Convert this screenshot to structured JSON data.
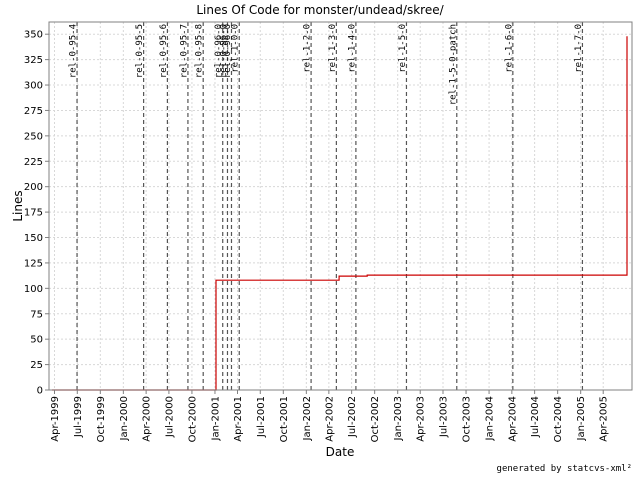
{
  "chart_data": {
    "type": "line",
    "title": "Lines Of Code for monster/undead/skree/",
    "xlabel": "Date",
    "ylabel": "Lines",
    "ylim": [
      0,
      362
    ],
    "xlim": [
      "1999-03-10",
      "2005-07-25"
    ],
    "yticks": [
      0,
      25,
      50,
      75,
      100,
      125,
      150,
      175,
      200,
      225,
      250,
      275,
      300,
      325,
      350
    ],
    "xticks": [
      {
        "label": "Apr-1999",
        "date": "1999-04-01"
      },
      {
        "label": "Jul-1999",
        "date": "1999-07-01"
      },
      {
        "label": "Oct-1999",
        "date": "1999-10-01"
      },
      {
        "label": "Jan-2000",
        "date": "2000-01-01"
      },
      {
        "label": "Apr-2000",
        "date": "2000-04-01"
      },
      {
        "label": "Jul-2000",
        "date": "2000-07-01"
      },
      {
        "label": "Oct-2000",
        "date": "2000-10-01"
      },
      {
        "label": "Jan-2001",
        "date": "2001-01-01"
      },
      {
        "label": "Apr-2001",
        "date": "2001-04-01"
      },
      {
        "label": "Jul-2001",
        "date": "2001-07-01"
      },
      {
        "label": "Oct-2001",
        "date": "2001-10-01"
      },
      {
        "label": "Jan-2002",
        "date": "2002-01-01"
      },
      {
        "label": "Apr-2002",
        "date": "2002-04-01"
      },
      {
        "label": "Jul-2002",
        "date": "2002-07-01"
      },
      {
        "label": "Oct-2002",
        "date": "2002-10-01"
      },
      {
        "label": "Jan-2003",
        "date": "2003-01-01"
      },
      {
        "label": "Apr-2003",
        "date": "2003-04-01"
      },
      {
        "label": "Jul-2003",
        "date": "2003-07-01"
      },
      {
        "label": "Oct-2003",
        "date": "2003-10-01"
      },
      {
        "label": "Jan-2004",
        "date": "2004-01-01"
      },
      {
        "label": "Apr-2004",
        "date": "2004-04-01"
      },
      {
        "label": "Jul-2004",
        "date": "2004-07-01"
      },
      {
        "label": "Oct-2004",
        "date": "2004-10-01"
      },
      {
        "label": "Jan-2005",
        "date": "2005-01-01"
      },
      {
        "label": "Apr-2005",
        "date": "2005-04-01"
      }
    ],
    "grid": true,
    "series": [
      {
        "color": "#cc0000",
        "step": true,
        "points": [
          {
            "x": "1999-03-22",
            "y": 0
          },
          {
            "x": "2000-12-28",
            "y": 0
          },
          {
            "x": "2001-01-05",
            "y": 108
          },
          {
            "x": "2002-05-10",
            "y": 108
          },
          {
            "x": "2002-05-12",
            "y": 112
          },
          {
            "x": "2002-08-25",
            "y": 112
          },
          {
            "x": "2002-09-01",
            "y": 113
          },
          {
            "x": "2005-07-01",
            "y": 113
          },
          {
            "x": "2005-07-05",
            "y": 348
          }
        ]
      }
    ],
    "markers": [
      {
        "label": "rel-0-95-4",
        "date": "1999-06-30"
      },
      {
        "label": "rel-0-95-5",
        "date": "2000-03-22"
      },
      {
        "label": "rel-0-95-6",
        "date": "2000-06-25"
      },
      {
        "label": "rel-0-95-7",
        "date": "2000-09-15"
      },
      {
        "label": "rel-0-95-8",
        "date": "2000-11-15"
      },
      {
        "label": "rel-0-96-0",
        "date": "2001-02-01"
      },
      {
        "label": "rel-0-96-0",
        "date": "2001-02-20"
      },
      {
        "label": "rel-0-96-0",
        "date": "2001-03-08"
      },
      {
        "label": "rel-1-0-0",
        "date": "2001-04-08"
      },
      {
        "label": "rel-1-2-0",
        "date": "2002-01-20"
      },
      {
        "label": "rel-1-3-0",
        "date": "2002-05-01"
      },
      {
        "label": "rel-1-4-0",
        "date": "2002-07-18"
      },
      {
        "label": "rel-1-5-0",
        "date": "2003-02-05"
      },
      {
        "label": "rel-1-5-0-patch",
        "date": "2003-08-25"
      },
      {
        "label": "rel-1-6-0",
        "date": "2004-04-05"
      },
      {
        "label": "rel-1-7-0",
        "date": "2005-01-08"
      }
    ],
    "colors": {
      "series": "#cc0000",
      "grid": "#d8d8d8",
      "marker": "#555555",
      "plot_bg": "#ffffff"
    }
  },
  "footer": "generated by statcvs-xml²"
}
